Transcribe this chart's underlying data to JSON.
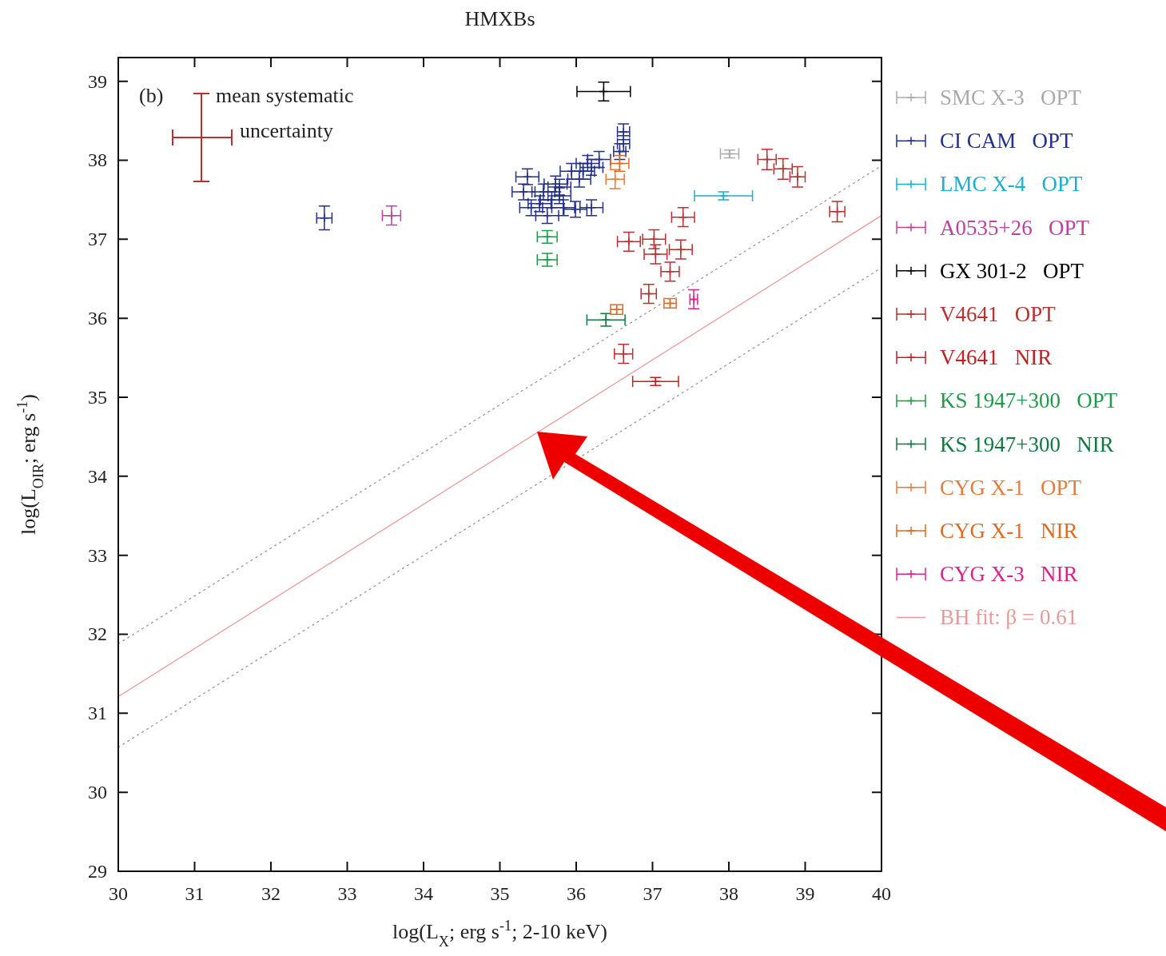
{
  "chart_data": {
    "type": "scatter",
    "title": "HMXBs",
    "xlabel": "log(L$_{X}$; erg s$^{-1}$; 2-10 keV)",
    "ylabel": "log(L$_{OIR}$; erg s$^{-1}$)",
    "xlim": [
      30,
      40
    ],
    "ylim": [
      29,
      39.3
    ],
    "xticks": [
      30,
      31,
      32,
      33,
      34,
      35,
      36,
      37,
      38,
      39,
      40
    ],
    "yticks": [
      29,
      30,
      31,
      32,
      33,
      34,
      35,
      36,
      37,
      38,
      39
    ],
    "grid": false,
    "legend": "right",
    "marker": "cross",
    "annotations": [
      "(b)",
      "mean systematic uncertainty"
    ],
    "series": [
      {
        "name": "SMC X-3   OPT",
        "color": "#aaaaaa",
        "x": [
          38.01
        ],
        "values": [
          38.08
        ],
        "xerrors": [
          0.12
        ],
        "errors": [
          0.05
        ]
      },
      {
        "name": "CI CAM   OPT",
        "color": "#23308c",
        "x": [
          32.7,
          35.36,
          35.31,
          35.41,
          35.52,
          35.68,
          35.78,
          35.83,
          35.62,
          35.99,
          36.2,
          35.94,
          36.09,
          36.15,
          36.2,
          36.04,
          35.78,
          36.62,
          36.62,
          36.57,
          36.3,
          35.57,
          35.73
        ],
        "values": [
          37.27,
          37.79,
          37.6,
          37.4,
          37.45,
          37.5,
          37.55,
          37.4,
          37.3,
          37.38,
          37.4,
          37.86,
          37.86,
          37.96,
          37.91,
          37.76,
          37.66,
          38.36,
          38.21,
          38.11,
          38.01,
          37.6,
          37.7
        ],
        "xerrors": [
          0.1,
          0.15,
          0.15,
          0.15,
          0.15,
          0.15,
          0.15,
          0.15,
          0.15,
          0.15,
          0.15,
          0.15,
          0.15,
          0.15,
          0.15,
          0.15,
          0.15,
          0.08,
          0.08,
          0.08,
          0.15,
          0.15,
          0.15
        ],
        "errors": [
          0.15,
          0.1,
          0.1,
          0.1,
          0.1,
          0.1,
          0.1,
          0.1,
          0.1,
          0.1,
          0.1,
          0.1,
          0.1,
          0.1,
          0.1,
          0.1,
          0.1,
          0.1,
          0.1,
          0.1,
          0.1,
          0.1,
          0.1
        ]
      },
      {
        "name": "LMC X-4   OPT",
        "color": "#1ab0d0",
        "x": [
          37.93
        ],
        "values": [
          37.55
        ],
        "xerrors": [
          0.38
        ],
        "errors": [
          0.05
        ]
      },
      {
        "name": "A0535+26   OPT",
        "color": "#c040a0",
        "x": [
          33.58
        ],
        "values": [
          37.3
        ],
        "xerrors": [
          0.12
        ],
        "errors": [
          0.12
        ]
      },
      {
        "name": "GX 301-2   OPT",
        "color": "#000000",
        "x": [
          36.36
        ],
        "values": [
          38.87
        ],
        "xerrors": [
          0.35
        ],
        "errors": [
          0.12
        ]
      },
      {
        "name": "V4641   OPT",
        "color": "#b83030",
        "x": [
          38.5,
          38.71,
          38.9,
          39.42,
          37.4,
          36.69,
          37.02,
          37.04,
          37.37,
          37.23,
          36.95,
          36.62
        ],
        "values": [
          38.01,
          37.89,
          37.79,
          37.35,
          37.28,
          36.97,
          37.0,
          36.81,
          36.87,
          36.59,
          36.31,
          35.55
        ],
        "xerrors": [
          0.12,
          0.12,
          0.1,
          0.1,
          0.15,
          0.15,
          0.15,
          0.15,
          0.15,
          0.12,
          0.1,
          0.12
        ],
        "errors": [
          0.13,
          0.13,
          0.13,
          0.13,
          0.12,
          0.12,
          0.12,
          0.12,
          0.12,
          0.12,
          0.12,
          0.12
        ]
      },
      {
        "name": "V4641   NIR",
        "color": "#c02020",
        "x": [
          37.04
        ],
        "values": [
          35.2
        ],
        "xerrors": [
          0.3
        ],
        "errors": [
          0.05
        ]
      },
      {
        "name": "KS 1947+300   OPT",
        "color": "#1f9a4a",
        "x": [
          35.62,
          35.62
        ],
        "values": [
          37.03,
          36.74
        ],
        "xerrors": [
          0.13,
          0.13
        ],
        "errors": [
          0.08,
          0.08
        ]
      },
      {
        "name": "KS 1947+300   NIR",
        "color": "#107a40",
        "x": [
          36.39
        ],
        "values": [
          35.98
        ],
        "xerrors": [
          0.25
        ],
        "errors": [
          0.08
        ]
      },
      {
        "name": "CYG X-1   OPT",
        "color": "#e87a3a",
        "x": [
          36.51
        ],
        "values": [
          37.76
        ],
        "xerrors": [
          0.12
        ],
        "errors": [
          0.12
        ]
      },
      {
        "name": "CYG X-1   NIR",
        "color": "#e06a20",
        "x": [
          36.57,
          36.53,
          37.23
        ],
        "values": [
          37.96,
          36.11,
          36.19
        ],
        "xerrors": [
          0.12,
          0.08,
          0.08
        ],
        "errors": [
          0.1,
          0.06,
          0.06
        ]
      },
      {
        "name": "CYG X-3   NIR",
        "color": "#e0208a",
        "x": [
          37.54
        ],
        "values": [
          36.24
        ],
        "xerrors": [
          0.05
        ],
        "errors": [
          0.12
        ]
      },
      {
        "name": "BH fit: β = 0.61",
        "type": "line",
        "marker": "none",
        "color": "#e89a9a",
        "line_style": "solid",
        "x": [
          30,
          40
        ],
        "values": [
          31.21,
          37.3
        ]
      },
      {
        "type": "line",
        "marker": "none",
        "color": "#999999",
        "line_style": "dotted",
        "x": [
          30,
          40
        ],
        "values": [
          31.88,
          37.93
        ]
      },
      {
        "type": "line",
        "marker": "none",
        "color": "#999999",
        "line_style": "dotted",
        "x": [
          30,
          40
        ],
        "values": [
          30.57,
          36.64
        ]
      }
    ]
  }
}
